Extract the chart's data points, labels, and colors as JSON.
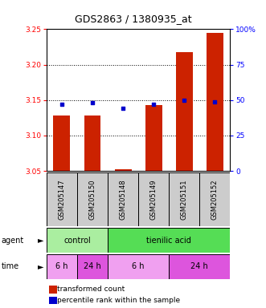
{
  "title": "GDS2863 / 1380935_at",
  "samples": [
    "GSM205147",
    "GSM205150",
    "GSM205148",
    "GSM205149",
    "GSM205151",
    "GSM205152"
  ],
  "transformed_counts": [
    3.128,
    3.128,
    3.052,
    3.143,
    3.218,
    3.245
  ],
  "percentile_ranks": [
    47,
    48,
    44,
    47,
    50,
    49
  ],
  "ylim_left": [
    3.05,
    3.25
  ],
  "ylim_right": [
    0,
    100
  ],
  "yticks_left": [
    3.05,
    3.1,
    3.15,
    3.2,
    3.25
  ],
  "yticks_right": [
    0,
    25,
    50,
    75,
    100
  ],
  "bar_color": "#cc2200",
  "dot_color": "#0000cc",
  "bar_baseline": 3.05,
  "agent_groups": [
    {
      "label": "control",
      "start": 0,
      "end": 2,
      "color": "#aaeea0"
    },
    {
      "label": "tienilic acid",
      "start": 2,
      "end": 6,
      "color": "#55dd55"
    }
  ],
  "time_groups": [
    {
      "label": "6 h",
      "start": 0,
      "end": 1,
      "color": "#f0a0f0"
    },
    {
      "label": "24 h",
      "start": 1,
      "end": 2,
      "color": "#dd55dd"
    },
    {
      "label": "6 h",
      "start": 2,
      "end": 4,
      "color": "#f0a0f0"
    },
    {
      "label": "24 h",
      "start": 4,
      "end": 6,
      "color": "#dd55dd"
    }
  ],
  "sample_box_color": "#cccccc",
  "legend_red_label": "transformed count",
  "legend_blue_label": "percentile rank within the sample",
  "title_fontsize": 9,
  "tick_fontsize": 6.5,
  "label_fontsize": 7,
  "sample_fontsize": 6
}
